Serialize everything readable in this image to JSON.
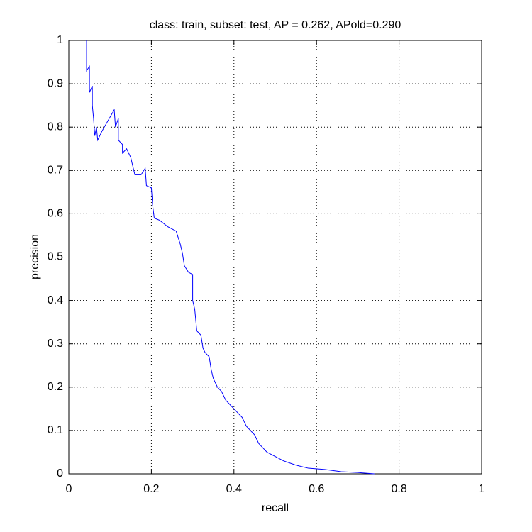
{
  "chart_data": {
    "type": "line",
    "title": "class: train, subset: test, AP = 0.262, APold=0.290",
    "x_label": "recall",
    "y_label": "precision",
    "xlim": [
      0,
      1
    ],
    "ylim": [
      0,
      1
    ],
    "xticks": [
      0,
      0.2,
      0.4,
      0.6,
      0.8,
      1
    ],
    "yticks": [
      0,
      0.1,
      0.2,
      0.3,
      0.4,
      0.5,
      0.6,
      0.7,
      0.8,
      0.9,
      1
    ],
    "grid": true,
    "series": [
      {
        "color": "#0000ff",
        "x": [
          0.043,
          0.043,
          0.05,
          0.05,
          0.057,
          0.057,
          0.06,
          0.063,
          0.067,
          0.07,
          0.08,
          0.11,
          0.113,
          0.12,
          0.12,
          0.13,
          0.13,
          0.14,
          0.15,
          0.155,
          0.16,
          0.175,
          0.185,
          0.188,
          0.2,
          0.203,
          0.207,
          0.22,
          0.24,
          0.26,
          0.27,
          0.275,
          0.28,
          0.29,
          0.3,
          0.3,
          0.305,
          0.31,
          0.32,
          0.325,
          0.33,
          0.34,
          0.345,
          0.35,
          0.36,
          0.37,
          0.38,
          0.39,
          0.4,
          0.41,
          0.42,
          0.43,
          0.44,
          0.45,
          0.46,
          0.47,
          0.48,
          0.5,
          0.52,
          0.55,
          0.58,
          0.62,
          0.66,
          0.7,
          0.74
        ],
        "values": [
          1.0,
          0.93,
          0.94,
          0.88,
          0.895,
          0.85,
          0.82,
          0.78,
          0.8,
          0.77,
          0.79,
          0.84,
          0.8,
          0.82,
          0.77,
          0.76,
          0.74,
          0.75,
          0.73,
          0.71,
          0.69,
          0.69,
          0.705,
          0.665,
          0.66,
          0.62,
          0.59,
          0.585,
          0.57,
          0.56,
          0.53,
          0.51,
          0.48,
          0.465,
          0.46,
          0.4,
          0.38,
          0.33,
          0.32,
          0.29,
          0.28,
          0.27,
          0.24,
          0.22,
          0.2,
          0.19,
          0.17,
          0.16,
          0.15,
          0.14,
          0.13,
          0.11,
          0.1,
          0.09,
          0.07,
          0.06,
          0.05,
          0.04,
          0.03,
          0.02,
          0.013,
          0.01,
          0.005,
          0.003,
          0
        ]
      }
    ]
  }
}
